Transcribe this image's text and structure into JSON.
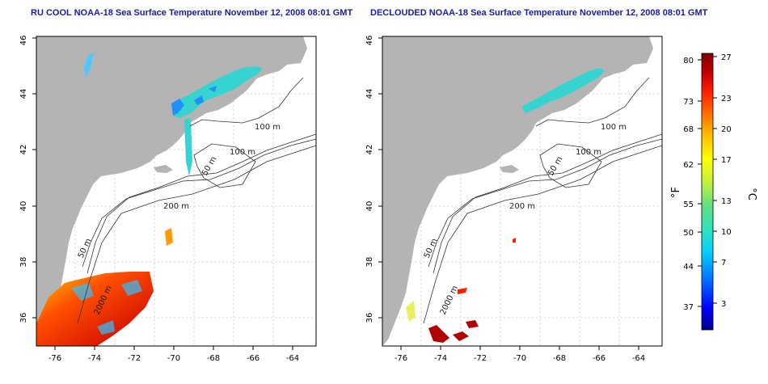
{
  "panels": [
    {
      "title": "RU COOL NOAA-18 Sea Surface Temperature November 12, 2008 08:01 GMT",
      "x_ticks": [
        "-76",
        "-74",
        "-72",
        "-70",
        "-68",
        "-66",
        "-64"
      ],
      "y_ticks": [
        "36",
        "38",
        "40",
        "42",
        "44",
        "46"
      ],
      "contour_labels": [
        "100 m",
        "100 m",
        "50 m",
        "200 m",
        "50 m",
        "2000 m"
      ]
    },
    {
      "title": "DECLOUDED NOAA-18 Sea Surface Temperature November 12, 2008 08:01 GMT",
      "x_ticks": [
        "-76",
        "-74",
        "-72",
        "-70",
        "-68",
        "-66",
        "-64"
      ],
      "y_ticks": [
        "36",
        "38",
        "40",
        "42",
        "44",
        "46"
      ],
      "contour_labels": [
        "100 m",
        "100 m",
        "50 m",
        "200 m",
        "50 m",
        "2000 m"
      ]
    }
  ],
  "colorbar": {
    "fahrenheit_label": "°F",
    "celsius_label": "°C",
    "fahrenheit_ticks": [
      "80",
      "73",
      "68",
      "62",
      "55",
      "50",
      "44",
      "37"
    ],
    "celsius_ticks": [
      "27",
      "23",
      "20",
      "17",
      "13",
      "10",
      "7",
      "3"
    ],
    "colors": [
      "#00008f",
      "#0000ff",
      "#0070ff",
      "#00cfff",
      "#30e0c0",
      "#60e080",
      "#c0f040",
      "#ffff00",
      "#ffc000",
      "#ff7000",
      "#ff2000",
      "#c00000",
      "#800000"
    ]
  },
  "colors": {
    "land": "#b4b4b4",
    "ocean": "#ffffff",
    "title": "#1a1aa8",
    "contour": "#333333",
    "grid": "#c8c8c8"
  }
}
